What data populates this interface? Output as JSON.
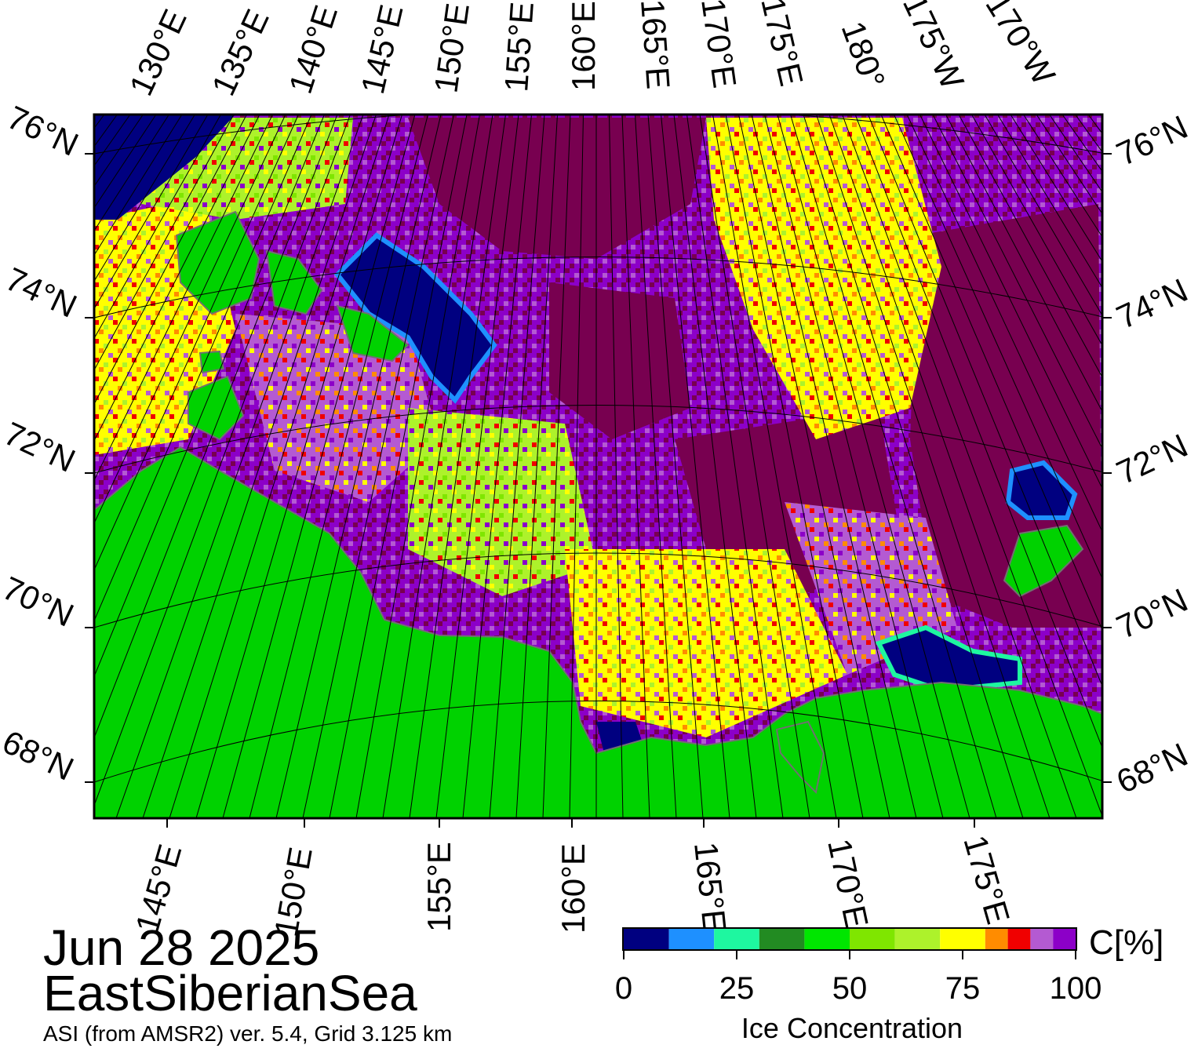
{
  "title": {
    "date": "Jun 28 2025",
    "region": "EastSiberianSea",
    "subtitle": "ASI (from AMSR2) ver. 5.4,  Grid 3.125 km"
  },
  "map": {
    "top_lon_labels": [
      "130°E",
      "135°E",
      "140°E",
      "145°E",
      "150°E",
      "155°E",
      "160°E",
      "165°E",
      "170°E",
      "175°E",
      "180°",
      "175°W",
      "170°W"
    ],
    "bottom_lon_labels": [
      "145°E",
      "150°E",
      "155°E",
      "160°E",
      "165°E",
      "170°E",
      "175°E"
    ],
    "left_lat_labels": [
      "76°N",
      "74°N",
      "72°N",
      "70°N",
      "68°N"
    ],
    "right_lat_labels": [
      "76°N",
      "74°N",
      "72°N",
      "70°N",
      "68°N"
    ],
    "colors": {
      "land": "#00d200",
      "open_water": "#000080",
      "ice_high": "#780050",
      "ice_very_high": "#8c00c8",
      "coast_line": "#707070",
      "grid_line": "#000000"
    }
  },
  "colorbar": {
    "title": "Ice Concentration",
    "unit": "C[%]",
    "ticks": [
      "0",
      "25",
      "50",
      "75",
      "100"
    ],
    "range": [
      0,
      100
    ],
    "bins": [
      {
        "from": 0,
        "to": 10,
        "color": "#000080"
      },
      {
        "from": 10,
        "to": 20,
        "color": "#1e90ff"
      },
      {
        "from": 20,
        "to": 30,
        "color": "#1ef7a0"
      },
      {
        "from": 30,
        "to": 40,
        "color": "#228b22"
      },
      {
        "from": 40,
        "to": 50,
        "color": "#00e600"
      },
      {
        "from": 50,
        "to": 60,
        "color": "#7fe600"
      },
      {
        "from": 60,
        "to": 70,
        "color": "#adf22b"
      },
      {
        "from": 70,
        "to": 80,
        "color": "#ffff00"
      },
      {
        "from": 80,
        "to": 85,
        "color": "#ff8c00"
      },
      {
        "from": 85,
        "to": 90,
        "color": "#f00000"
      },
      {
        "from": 90,
        "to": 95,
        "color": "#b45ad2"
      },
      {
        "from": 95,
        "to": 100,
        "color": "#8c00c8"
      }
    ]
  }
}
